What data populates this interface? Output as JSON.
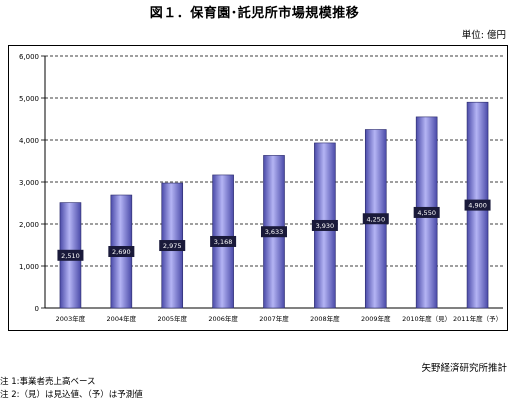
{
  "header": {
    "title": "図１．保育園･託児所市場規模推移",
    "unit": "単位: 億円"
  },
  "footer": {
    "source": "矢野経済研究所推計",
    "note1": "注 1:事業者売上高ベース",
    "note2": "注 2:（見）は見込値、（予）は予測値"
  },
  "colors": {
    "bar_mid": "#8a8ae6",
    "bar_edge": "#4a4aa8",
    "bar_highlight": "#b4b4f4",
    "label_bg": "#1a1a3a",
    "label_text": "#ffffff"
  },
  "chart_data": {
    "type": "bar",
    "categories": [
      "2003年度",
      "2004年度",
      "2005年度",
      "2006年度",
      "2007年度",
      "2008年度",
      "2009年度",
      "2010年度（見）",
      "2011年度（予）"
    ],
    "values": [
      2510,
      2690,
      2975,
      3168,
      3633,
      3930,
      4250,
      4550,
      4900
    ],
    "value_labels": [
      "2,510",
      "2,690",
      "2,975",
      "3,168",
      "3,633",
      "3,930",
      "4,250",
      "4,550",
      "4,900"
    ],
    "yticks": [
      0,
      1000,
      2000,
      3000,
      4000,
      5000,
      6000
    ],
    "ytick_labels": [
      "0",
      "1,000",
      "2,000",
      "3,000",
      "4,000",
      "5,000",
      "6,000"
    ],
    "ylim": [
      0,
      6000
    ],
    "grid": true,
    "legend": "none"
  }
}
